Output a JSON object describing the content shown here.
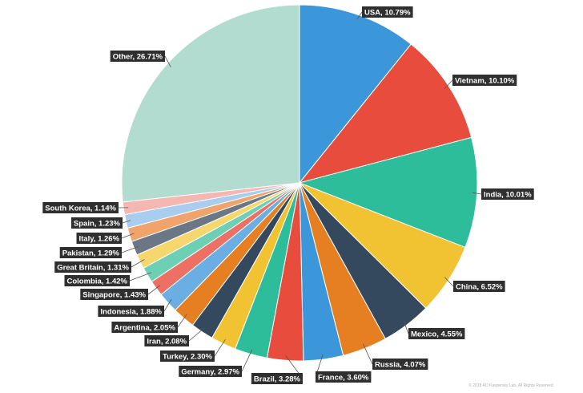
{
  "chart_data": {
    "type": "pie",
    "slices": [
      {
        "label": "USA, 10.79%",
        "value": 10.79,
        "color": "#3b97d9"
      },
      {
        "label": "Vietnam, 10.10%",
        "value": 10.1,
        "color": "#e74c3c"
      },
      {
        "label": "India, 10.01%",
        "value": 10.01,
        "color": "#2ebd9a"
      },
      {
        "label": "China, 6.52%",
        "value": 6.52,
        "color": "#f1c232"
      },
      {
        "label": "Mexico, 4.55%",
        "value": 4.55,
        "color": "#34495e"
      },
      {
        "label": "Russia, 4.07%",
        "value": 4.07,
        "color": "#e67e22"
      },
      {
        "label": "France, 3.60%",
        "value": 3.6,
        "color": "#3b97d9"
      },
      {
        "label": "Brazil, 3.28%",
        "value": 3.28,
        "color": "#e74c3c"
      },
      {
        "label": "Germany, 2.97%",
        "value": 2.97,
        "color": "#2ebd9a"
      },
      {
        "label": "Turkey, 2.30%",
        "value": 2.3,
        "color": "#f1c232"
      },
      {
        "label": "Iran, 2.08%",
        "value": 2.08,
        "color": "#34495e"
      },
      {
        "label": "Argentina, 2.05%",
        "value": 2.05,
        "color": "#e67e22"
      },
      {
        "label": "Indonesia, 1.88%",
        "value": 1.88,
        "color": "#6aaee3"
      },
      {
        "label": "Singapore, 1.43%",
        "value": 1.43,
        "color": "#ec7063"
      },
      {
        "label": "Colombia, 1.42%",
        "value": 1.42,
        "color": "#6dcfb3"
      },
      {
        "label": "Great Britain, 1.31%",
        "value": 1.31,
        "color": "#f5d76e"
      },
      {
        "label": "Pakistan, 1.29%",
        "value": 1.29,
        "color": "#6b7785"
      },
      {
        "label": "Italy, 1.26%",
        "value": 1.26,
        "color": "#f0a36b"
      },
      {
        "label": "Spain, 1.23%",
        "value": 1.23,
        "color": "#a9cdee"
      },
      {
        "label": "South Korea, 1.14%",
        "value": 1.14,
        "color": "#f5b7b1"
      },
      {
        "label": "Other, 26.71%",
        "value": 26.71,
        "color": "#b2dcd0"
      }
    ]
  },
  "footer": {
    "copyright": "© 2018 AO Kaspersky Lab. All Rights Reserved."
  }
}
